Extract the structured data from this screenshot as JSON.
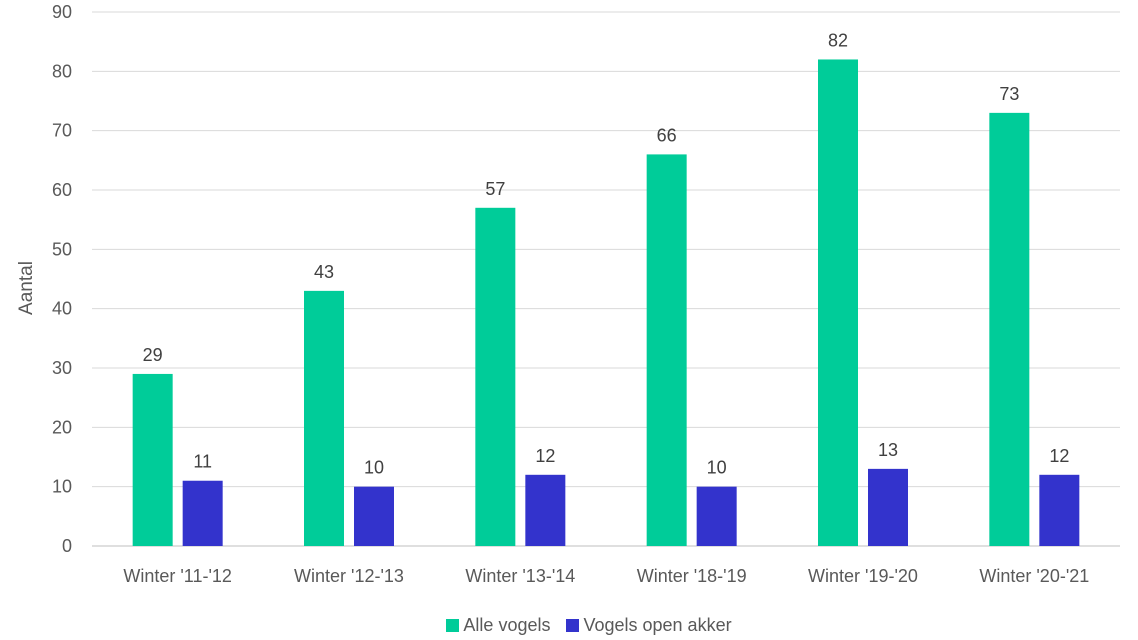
{
  "chart_data": {
    "type": "bar",
    "categories": [
      "Winter '11-'12",
      "Winter '12-'13",
      "Winter '13-'14",
      "Winter '18-'19",
      "Winter '19-'20",
      "Winter '20-'21"
    ],
    "series": [
      {
        "name": "Alle vogels",
        "values": [
          29,
          43,
          57,
          66,
          82,
          73
        ],
        "color": "#00cc99"
      },
      {
        "name": "Vogels open akker",
        "values": [
          11,
          10,
          12,
          10,
          13,
          12
        ],
        "color": "#3333cc"
      }
    ],
    "ylabel": "Aantal",
    "xlabel": "",
    "ylim": [
      0,
      90
    ],
    "yticks": [
      0,
      10,
      20,
      30,
      40,
      50,
      60,
      70,
      80,
      90
    ],
    "grid": true,
    "legend_position": "bottom"
  }
}
